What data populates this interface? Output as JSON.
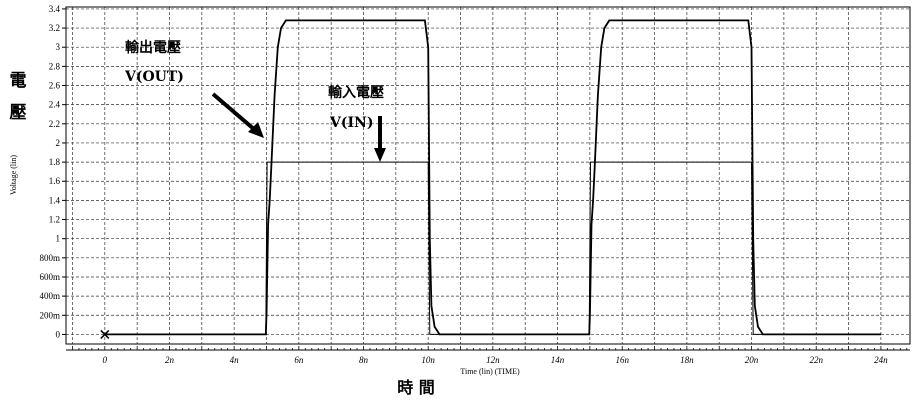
{
  "chart_data": {
    "type": "line",
    "title": "",
    "xlabel_small": "Time (lin) (TIME)",
    "ylabel_small": "Voltage (lin)",
    "xlabel_cjk": "時 間",
    "ylabel_cjk": [
      "電",
      "壓"
    ],
    "xlim": [
      -1.2,
      24.9
    ],
    "ylim": [
      -0.1,
      3.42
    ],
    "x_ticks": [
      {
        "v": 0,
        "label": "0"
      },
      {
        "v": 2,
        "label": "2n"
      },
      {
        "v": 4,
        "label": "4n"
      },
      {
        "v": 6,
        "label": "6n"
      },
      {
        "v": 8,
        "label": "8n"
      },
      {
        "v": 10,
        "label": "10n"
      },
      {
        "v": 12,
        "label": "12n"
      },
      {
        "v": 14,
        "label": "14n"
      },
      {
        "v": 16,
        "label": "16n"
      },
      {
        "v": 18,
        "label": "18n"
      },
      {
        "v": 20,
        "label": "20n"
      },
      {
        "v": 22,
        "label": "22n"
      },
      {
        "v": 24,
        "label": "24n"
      }
    ],
    "y_ticks": [
      {
        "v": 0,
        "label": "0"
      },
      {
        "v": 0.2,
        "label": "200m"
      },
      {
        "v": 0.4,
        "label": "400m"
      },
      {
        "v": 0.6,
        "label": "600m"
      },
      {
        "v": 0.8,
        "label": "800m"
      },
      {
        "v": 1.0,
        "label": "1"
      },
      {
        "v": 1.2,
        "label": "1.2"
      },
      {
        "v": 1.4,
        "label": "1.4"
      },
      {
        "v": 1.6,
        "label": "1.6"
      },
      {
        "v": 1.8,
        "label": "1.8"
      },
      {
        "v": 2.0,
        "label": "2"
      },
      {
        "v": 2.2,
        "label": "2.2"
      },
      {
        "v": 2.4,
        "label": "2.4"
      },
      {
        "v": 2.6,
        "label": "2.6"
      },
      {
        "v": 2.8,
        "label": "2.8"
      },
      {
        "v": 3.0,
        "label": "3"
      },
      {
        "v": 3.2,
        "label": "3.2"
      },
      {
        "v": 3.4,
        "label": "3.4"
      }
    ],
    "grid": true,
    "series": [
      {
        "name": "V(OUT)",
        "label_cjk": "輸出電壓",
        "color": "#000000",
        "points": [
          [
            0,
            0
          ],
          [
            4.98,
            0
          ],
          [
            5.0,
            0.2
          ],
          [
            5.05,
            1.15
          ],
          [
            5.1,
            1.4
          ],
          [
            5.15,
            1.75
          ],
          [
            5.25,
            2.5
          ],
          [
            5.35,
            3.0
          ],
          [
            5.45,
            3.2
          ],
          [
            5.6,
            3.28
          ],
          [
            9.9,
            3.28
          ],
          [
            10.0,
            3.0
          ],
          [
            10.05,
            1.0
          ],
          [
            10.1,
            0.3
          ],
          [
            10.2,
            0.08
          ],
          [
            10.35,
            0
          ],
          [
            14.98,
            0
          ],
          [
            15.0,
            0.2
          ],
          [
            15.05,
            1.15
          ],
          [
            15.1,
            1.4
          ],
          [
            15.15,
            1.75
          ],
          [
            15.25,
            2.5
          ],
          [
            15.35,
            3.0
          ],
          [
            15.45,
            3.2
          ],
          [
            15.6,
            3.28
          ],
          [
            19.9,
            3.28
          ],
          [
            20.0,
            3.0
          ],
          [
            20.05,
            1.0
          ],
          [
            20.1,
            0.3
          ],
          [
            20.2,
            0.08
          ],
          [
            20.35,
            0
          ],
          [
            24,
            0
          ]
        ]
      },
      {
        "name": "V(IN)",
        "label_cjk": "輸入電壓",
        "color": "#000000",
        "points": [
          [
            0,
            0
          ],
          [
            4.98,
            0
          ],
          [
            5.02,
            1.8
          ],
          [
            10.0,
            1.8
          ],
          [
            10.05,
            0
          ],
          [
            14.98,
            0
          ],
          [
            15.02,
            1.8
          ],
          [
            20.0,
            1.8
          ],
          [
            20.05,
            0
          ],
          [
            24,
            0
          ]
        ]
      }
    ],
    "annotations": [
      {
        "name": "vout",
        "line1": "輸出電壓",
        "line2": "V(OUT)"
      },
      {
        "name": "vin",
        "line1": "輸入電壓",
        "line2": "V(IN)"
      }
    ]
  }
}
